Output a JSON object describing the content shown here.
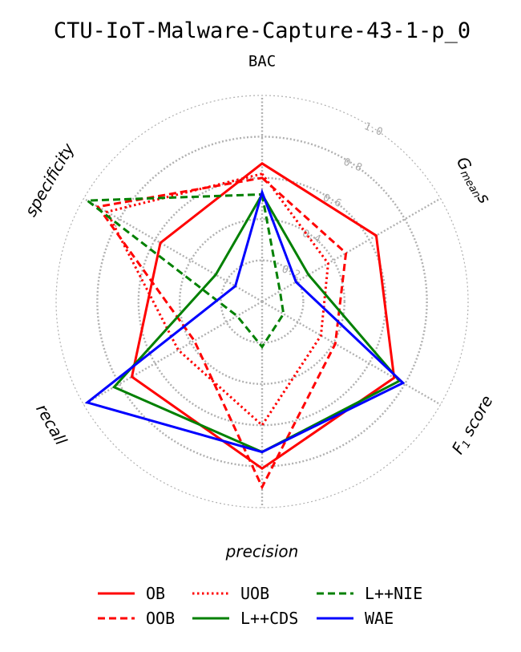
{
  "chart_data": {
    "type": "radar",
    "title": "CTU-IoT-Malware-Capture-43-1-p_0",
    "axes": [
      "BAC",
      "Gmeans",
      "F1 score",
      "precision",
      "recall",
      "specificity"
    ],
    "axis_label_html": {
      "gmeans": [
        "G",
        "mean",
        "s"
      ],
      "f1": [
        "F",
        "1",
        " score"
      ]
    },
    "radial_range": [
      0,
      1.0
    ],
    "radial_ticks": [
      "0.2",
      "0.4",
      "0.6",
      "0.8",
      "1.0"
    ],
    "grid": true,
    "legend_placement": "bottom-center",
    "series": [
      {
        "name": "OB",
        "color": "#ff0000",
        "dash": "solid",
        "values": [
          0.67,
          0.64,
          0.74,
          0.81,
          0.73,
          0.57
        ]
      },
      {
        "name": "OOB",
        "color": "#ff0000",
        "dash": "dashed",
        "values": [
          0.6,
          0.47,
          0.41,
          0.9,
          0.38,
          0.92
        ]
      },
      {
        "name": "UOB",
        "color": "#ff0000",
        "dash": "dotted",
        "values": [
          0.62,
          0.37,
          0.33,
          0.6,
          0.47,
          0.87
        ]
      },
      {
        "name": "L++CDS",
        "color": "#008000",
        "dash": "solid",
        "values": [
          0.52,
          0.26,
          0.77,
          0.73,
          0.83,
          0.26
        ]
      },
      {
        "name": "L++NIE",
        "color": "#008000",
        "dash": "dashed",
        "values": [
          0.52,
          0.1,
          0.12,
          0.22,
          0.14,
          0.98
        ]
      },
      {
        "name": "WAE",
        "color": "#0000ff",
        "dash": "solid",
        "values": [
          0.53,
          0.19,
          0.79,
          0.73,
          0.98,
          0.15
        ]
      }
    ]
  }
}
